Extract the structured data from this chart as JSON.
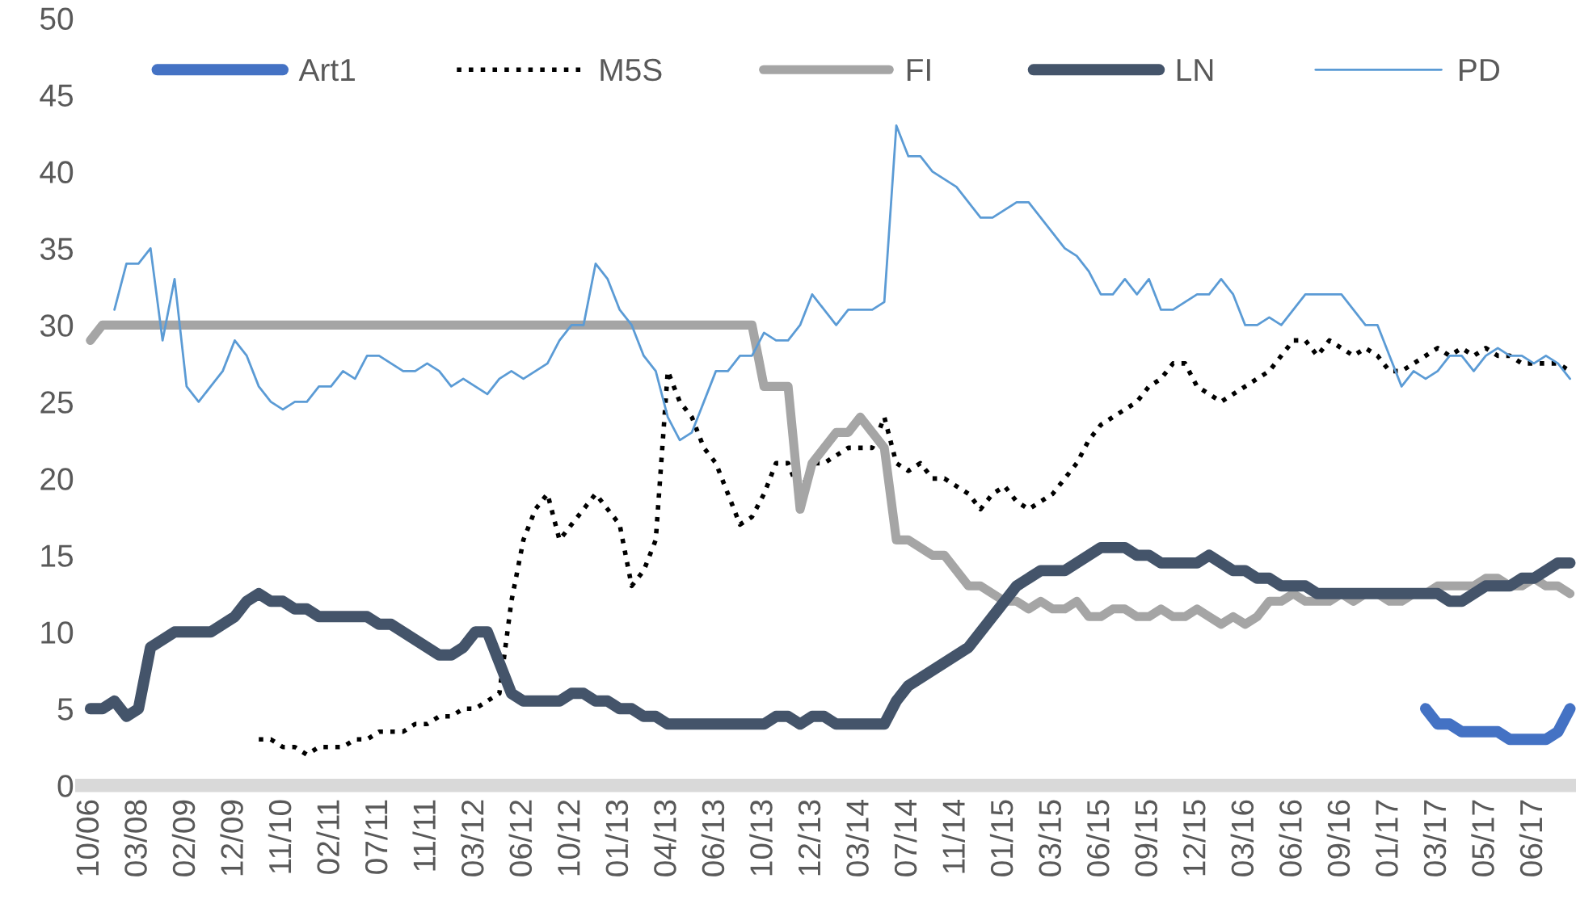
{
  "chart_data": {
    "type": "line",
    "legend": "top",
    "grid": false,
    "ylim": [
      0,
      50
    ],
    "yticks": [
      0,
      5,
      10,
      15,
      20,
      25,
      30,
      35,
      40,
      45,
      50
    ],
    "categories": [
      "10/06",
      null,
      null,
      null,
      "03/08",
      null,
      null,
      null,
      "02/09",
      null,
      null,
      null,
      "12/09",
      null,
      null,
      null,
      "11/10",
      null,
      null,
      null,
      "02/11",
      null,
      null,
      null,
      "07/11",
      null,
      null,
      null,
      "11/11",
      null,
      null,
      null,
      "03/12",
      null,
      null,
      null,
      "06/12",
      null,
      null,
      null,
      "10/12",
      null,
      null,
      null,
      "01/13",
      null,
      null,
      null,
      "04/13",
      null,
      null,
      null,
      "06/13",
      null,
      null,
      null,
      "10/13",
      null,
      null,
      null,
      "12/13",
      null,
      null,
      null,
      "03/14",
      null,
      null,
      null,
      "07/14",
      null,
      null,
      null,
      "11/14",
      null,
      null,
      null,
      "01/15",
      null,
      null,
      null,
      "03/15",
      null,
      null,
      null,
      "06/15",
      null,
      null,
      null,
      "09/15",
      null,
      null,
      null,
      "12/15",
      null,
      null,
      null,
      "03/16",
      null,
      null,
      null,
      "06/16",
      null,
      null,
      null,
      "09/16",
      null,
      null,
      null,
      "01/17",
      null,
      null,
      null,
      "03/17",
      null,
      null,
      null,
      "05/17",
      null,
      null,
      null,
      "06/17",
      null,
      null,
      null
    ],
    "series": [
      {
        "name": "Art1",
        "color": "#4472c4",
        "line_style": "solid",
        "values": [
          null,
          null,
          null,
          null,
          null,
          null,
          null,
          null,
          null,
          null,
          null,
          null,
          null,
          null,
          null,
          null,
          null,
          null,
          null,
          null,
          null,
          null,
          null,
          null,
          null,
          null,
          null,
          null,
          null,
          null,
          null,
          null,
          null,
          null,
          null,
          null,
          null,
          null,
          null,
          null,
          null,
          null,
          null,
          null,
          null,
          null,
          null,
          null,
          null,
          null,
          null,
          null,
          null,
          null,
          null,
          null,
          null,
          null,
          null,
          null,
          null,
          null,
          null,
          null,
          null,
          null,
          null,
          null,
          null,
          null,
          null,
          null,
          null,
          null,
          null,
          null,
          null,
          null,
          null,
          null,
          null,
          null,
          null,
          null,
          null,
          null,
          null,
          null,
          null,
          null,
          null,
          null,
          null,
          null,
          null,
          null,
          null,
          null,
          null,
          null,
          null,
          null,
          null,
          null,
          null,
          null,
          null,
          null,
          null,
          null,
          null,
          5,
          4,
          4,
          3.5,
          3.5,
          3.5,
          3.5,
          3,
          3,
          3,
          3,
          3.5,
          5
        ]
      },
      {
        "name": "M5S",
        "color": "#000000",
        "line_style": "dotted",
        "values": [
          null,
          null,
          null,
          null,
          null,
          null,
          null,
          null,
          null,
          null,
          null,
          null,
          null,
          null,
          3,
          3,
          2.5,
          2.5,
          2,
          2.5,
          2.5,
          2.5,
          3,
          3,
          3.5,
          3.5,
          3.5,
          4,
          4,
          4.5,
          4.5,
          5,
          5,
          5.5,
          6,
          12,
          16,
          18,
          19,
          16,
          17,
          18,
          19,
          18,
          17,
          13,
          14,
          16,
          27,
          25,
          24,
          22,
          21,
          19,
          17,
          17.5,
          19,
          21,
          21,
          19,
          21,
          21,
          21.5,
          22,
          22,
          22,
          24,
          21,
          20.5,
          21,
          20,
          20,
          19.5,
          19,
          18,
          19,
          19.5,
          18.5,
          18,
          18.5,
          19,
          20,
          21,
          22.5,
          23.5,
          24,
          24.5,
          25,
          26,
          26.5,
          27.5,
          27.5,
          26,
          25.5,
          25,
          25.5,
          26,
          26.5,
          27,
          28,
          29,
          29,
          28,
          29,
          28.5,
          28,
          28.5,
          28,
          27,
          27,
          27.5,
          28,
          28.5,
          28,
          28.5,
          28,
          28.5,
          28,
          28,
          27.5,
          27.5,
          27.5,
          27.5,
          27
        ]
      },
      {
        "name": "FI",
        "color": "#a5a5a5",
        "line_style": "solid",
        "values": [
          29,
          30,
          30,
          30,
          30,
          30,
          30,
          30,
          30,
          30,
          30,
          30,
          30,
          30,
          30,
          30,
          30,
          30,
          30,
          30,
          30,
          30,
          30,
          30,
          30,
          30,
          30,
          30,
          30,
          30,
          30,
          30,
          30,
          30,
          30,
          30,
          30,
          30,
          30,
          30,
          30,
          30,
          30,
          30,
          30,
          30,
          30,
          30,
          30,
          30,
          30,
          30,
          30,
          30,
          30,
          30,
          26,
          26,
          26,
          18,
          21,
          22,
          23,
          23,
          24,
          23,
          22,
          16,
          16,
          15.5,
          15,
          15,
          14,
          13,
          13,
          12.5,
          12,
          12,
          11.5,
          12,
          11.5,
          11.5,
          12,
          11,
          11,
          11.5,
          11.5,
          11,
          11,
          11.5,
          11,
          11,
          11.5,
          11,
          10.5,
          11,
          10.5,
          11,
          12,
          12,
          12.5,
          12,
          12,
          12,
          12.5,
          12,
          12.5,
          12.5,
          12,
          12,
          12.5,
          12.5,
          13,
          13,
          13,
          13,
          13.5,
          13.5,
          13,
          13,
          13.5,
          13,
          13,
          12.5
        ]
      },
      {
        "name": "LN",
        "color": "#44546a",
        "line_style": "solid",
        "values": [
          5,
          5,
          5.5,
          4.5,
          5,
          9,
          9.5,
          10,
          10,
          10,
          10,
          10.5,
          11,
          12,
          12.5,
          12,
          12,
          11.5,
          11.5,
          11,
          11,
          11,
          11,
          11,
          10.5,
          10.5,
          10,
          9.5,
          9,
          8.5,
          8.5,
          9,
          10,
          10,
          8,
          6,
          5.5,
          5.5,
          5.5,
          5.5,
          6,
          6,
          5.5,
          5.5,
          5,
          5,
          4.5,
          4.5,
          4,
          4,
          4,
          4,
          4,
          4,
          4,
          4,
          4,
          4.5,
          4.5,
          4,
          4.5,
          4.5,
          4,
          4,
          4,
          4,
          4,
          5.5,
          6.5,
          7,
          7.5,
          8,
          8.5,
          9,
          10,
          11,
          12,
          13,
          13.5,
          14,
          14,
          14,
          14.5,
          15,
          15.5,
          15.5,
          15.5,
          15,
          15,
          14.5,
          14.5,
          14.5,
          14.5,
          15,
          14.5,
          14,
          14,
          13.5,
          13.5,
          13,
          13,
          13,
          12.5,
          12.5,
          12.5,
          12.5,
          12.5,
          12.5,
          12.5,
          12.5,
          12.5,
          12.5,
          12.5,
          12,
          12,
          12.5,
          13,
          13,
          13,
          13.5,
          13.5,
          14,
          14.5,
          14.5
        ]
      },
      {
        "name": "PD",
        "color": "#5b9bd5",
        "line_style": "solid",
        "values": [
          null,
          null,
          31,
          34,
          34,
          35,
          29,
          33,
          26,
          25,
          26,
          27,
          29,
          28,
          26,
          25,
          24.5,
          25,
          25,
          26,
          26,
          27,
          26.5,
          28,
          28,
          27.5,
          27,
          27,
          27.5,
          27,
          26,
          26.5,
          26,
          25.5,
          26.5,
          27,
          26.5,
          27,
          27.5,
          29,
          30,
          30,
          34,
          33,
          31,
          30,
          28,
          27,
          24,
          22.5,
          23,
          25,
          27,
          27,
          28,
          28,
          29.5,
          29,
          29,
          30,
          32,
          31,
          30,
          31,
          31,
          31,
          31.5,
          43,
          41,
          41,
          40,
          39.5,
          39,
          38,
          37,
          37,
          37.5,
          38,
          38,
          37,
          36,
          35,
          34.5,
          33.5,
          32,
          32,
          33,
          32,
          33,
          31,
          31,
          31.5,
          32,
          32,
          33,
          32,
          30,
          30,
          30.5,
          30,
          31,
          32,
          32,
          32,
          32,
          31,
          30,
          30,
          28,
          26,
          27,
          26.5,
          27,
          28,
          28,
          27,
          28,
          28.5,
          28,
          28,
          27.5,
          28,
          27.5,
          26.5
        ]
      }
    ]
  }
}
